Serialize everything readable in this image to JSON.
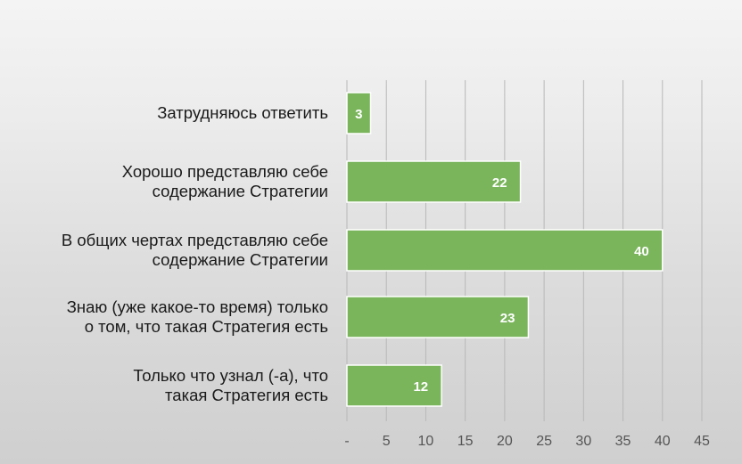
{
  "chart_data": {
    "type": "bar",
    "orientation": "horizontal",
    "categories": [
      [
        "Затрудняюсь ответить"
      ],
      [
        "Хорошо представляю себе",
        "содержание Стратегии"
      ],
      [
        "В общих чертах представляю себе",
        "содержание Стратегии"
      ],
      [
        "Знаю (уже какое-то время) только",
        "о том, что такая Стратегия есть"
      ],
      [
        "Только что узнал (-а), что",
        "такая Стратегия есть"
      ]
    ],
    "values": [
      3,
      22,
      40,
      23,
      12
    ],
    "data_labels": [
      "3",
      "22",
      "40",
      "23",
      "12"
    ],
    "xlim": [
      0,
      45
    ],
    "xticks": [
      0,
      5,
      10,
      15,
      20,
      25,
      30,
      35,
      40,
      45
    ],
    "xtick_labels": [
      "-",
      "5",
      "10",
      "15",
      "20",
      "25",
      "30",
      "35",
      "40",
      "45"
    ],
    "grid": true,
    "bar_color": "#7ab55c"
  }
}
